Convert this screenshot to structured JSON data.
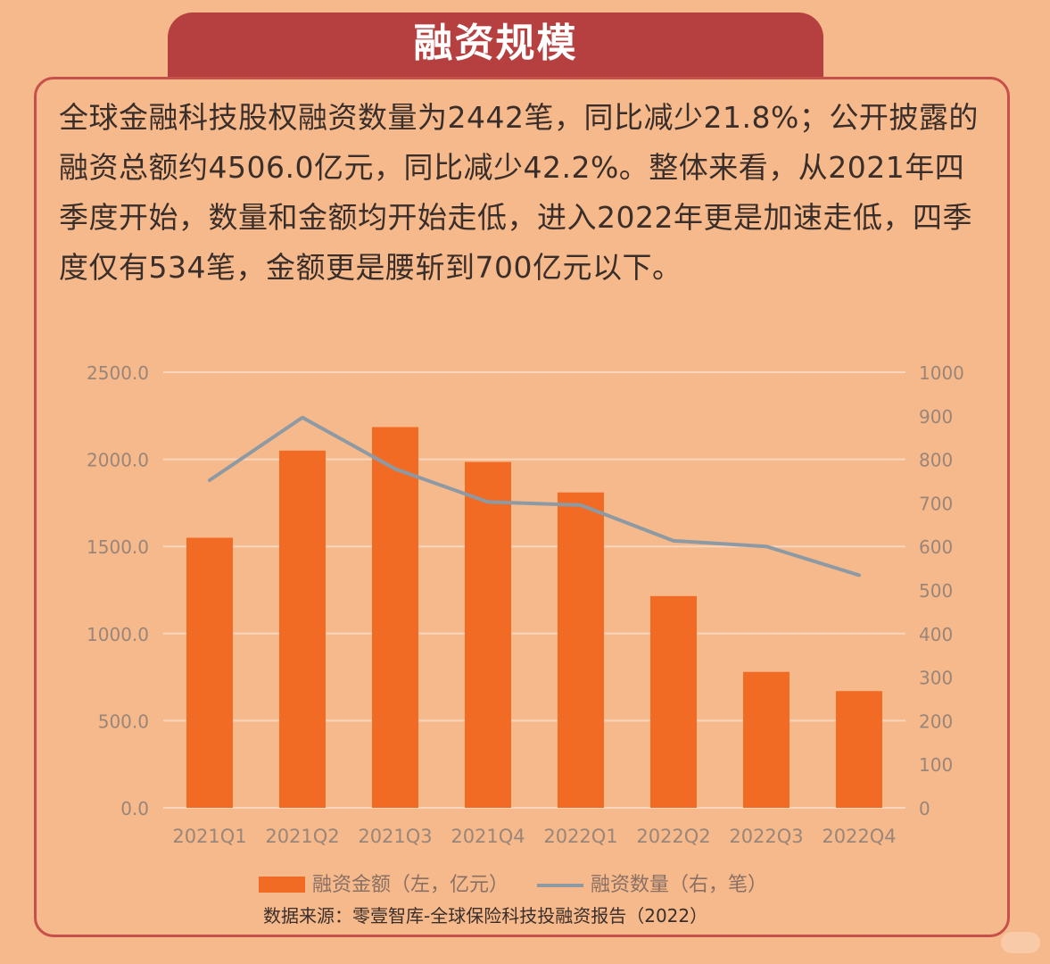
{
  "header": {
    "title": "融资规模"
  },
  "summary": {
    "text": "全球金融科技股权融资数量为2442笔，同比减少21.8%；公开披露的融资总额约4506.0亿元，同比减少42.2%。整体来看，从2021年四季度开始，数量和金额均开始走低，进入2022年更是加速走低，四季度仅有534笔，金额更是腰斩到700亿元以下。"
  },
  "chart_data": {
    "type": "bar",
    "categories": [
      "2021Q1",
      "2021Q2",
      "2021Q3",
      "2021Q4",
      "2022Q1",
      "2022Q2",
      "2022Q3",
      "2022Q4"
    ],
    "series": [
      {
        "name": "融资金额（左，亿元）",
        "type": "bar",
        "axis": "left",
        "color": "#f26b25",
        "values": [
          1550,
          2050,
          2185,
          1985,
          1810,
          1215,
          780,
          670
        ]
      },
      {
        "name": "融资数量（右，笔）",
        "type": "line",
        "axis": "right",
        "color": "#8d9aa4",
        "values": [
          752,
          896,
          778,
          702,
          695,
          613,
          600,
          534
        ]
      }
    ],
    "y_left": {
      "range": [
        0,
        2500
      ],
      "ticks": [
        "0.0",
        "500.0",
        "1000.0",
        "1500.0",
        "2000.0",
        "2500.0"
      ]
    },
    "y_right": {
      "range": [
        0,
        1000
      ],
      "ticks": [
        "0",
        "100",
        "200",
        "300",
        "400",
        "500",
        "600",
        "700",
        "800",
        "900",
        "1000"
      ]
    },
    "grid": true,
    "legend_position": "bottom"
  },
  "legend": {
    "bar_label": "融资金额（左，亿元）",
    "line_label": "融资数量（右，笔）"
  },
  "source": {
    "text": "数据来源：零壹智库-全球保险科技投融资报告（2022）"
  },
  "colors": {
    "background": "#f6b98b",
    "title_tab": "#b6403f",
    "card_border": "#c6504a",
    "bar": "#f26b25",
    "line": "#8d9aa4",
    "grid": "#f8d6bd"
  }
}
